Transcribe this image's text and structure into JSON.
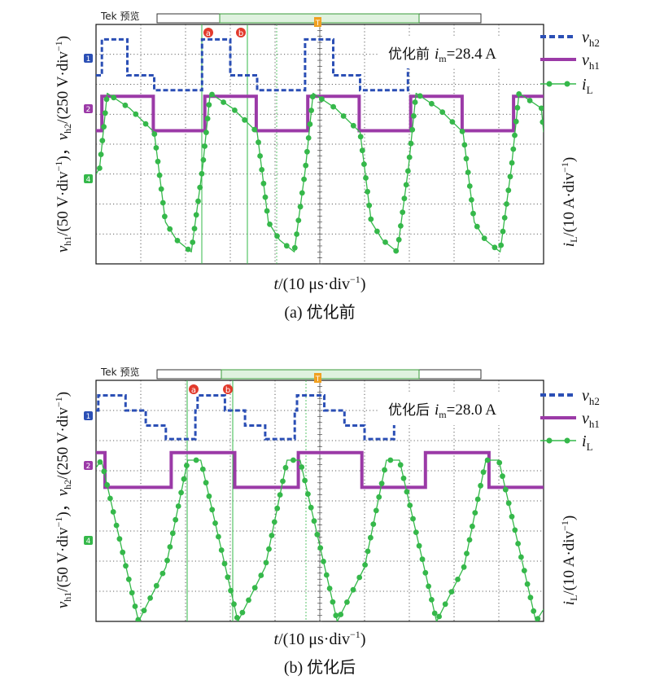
{
  "panels": [
    {
      "id": "a",
      "scope_label": "Tek 预览",
      "annotation_prefix": "优化前",
      "annotation_var": "i",
      "annotation_sub": "m",
      "annotation_value": "=28.4 A",
      "caption": "(a) 优化前",
      "cursor_labels": [
        "a",
        "b"
      ],
      "trigger_label": "T",
      "channel_markers": [
        "1",
        "2",
        "4"
      ]
    },
    {
      "id": "b",
      "scope_label": "Tek 预览",
      "annotation_prefix": "优化后",
      "annotation_var": "i",
      "annotation_sub": "m",
      "annotation_value": "=28.0 A",
      "caption": "(b) 优化后",
      "cursor_labels": [
        "a",
        "b"
      ],
      "trigger_label": "T",
      "channel_markers": [
        "1",
        "2",
        "4"
      ]
    }
  ],
  "axis_labels": {
    "y_left": {
      "p1_var": "v",
      "p1_sub": "h1",
      "p1_unit": "/(50 V·div",
      "sep": "，",
      "p2_var": "v",
      "p2_sub": "h2",
      "p2_unit": "/(250 V·div",
      "exp": "−1",
      "close": ")"
    },
    "y_right": {
      "var": "i",
      "sub": "L",
      "unit": "/(10 A·div",
      "exp": "−1",
      "close": ")"
    },
    "x": {
      "var": "t",
      "unit": "/(10 μs·div",
      "exp": "−1",
      "close": ")"
    }
  },
  "legend": [
    {
      "var": "v",
      "sub": "h2",
      "color": "#2b4fb5",
      "style": "dashed"
    },
    {
      "var": "v",
      "sub": "h1",
      "color": "#9b3aa7",
      "style": "solid"
    },
    {
      "var": "i",
      "sub": "L",
      "color": "#35b84a",
      "style": "solid-dots"
    }
  ],
  "chart_data": [
    {
      "type": "line",
      "title": "",
      "x_divisions": 10,
      "y_divisions": 8,
      "grid": true,
      "legend_position": "right",
      "period_div": 2.3,
      "series": [
        {
          "name": "v_h2",
          "color": "#2b4fb5",
          "x": [
            0.0,
            0.06,
            0.13,
            0.13,
            0.7,
            0.7,
            1.3,
            1.3,
            2.37,
            2.37,
            3.0,
            3.0,
            3.6,
            3.6,
            4.67,
            4.67,
            5.3,
            5.3,
            5.9,
            5.9,
            6.97,
            6.97,
            7.32
          ],
          "y": [
            6.3,
            6.3,
            6.3,
            7.5,
            7.5,
            6.3,
            6.3,
            5.8,
            5.8,
            7.5,
            7.5,
            6.3,
            6.3,
            5.8,
            5.8,
            7.5,
            7.5,
            6.3,
            6.3,
            5.8,
            5.8,
            7.5,
            7.5
          ]
        },
        {
          "name": "v_h1",
          "color": "#9b3aa7",
          "x": [
            0.0,
            0.13,
            0.13,
            1.28,
            1.28,
            2.43,
            2.43,
            3.58,
            3.58,
            4.73,
            4.73,
            5.88,
            5.88,
            7.03,
            7.03,
            8.18,
            8.18,
            9.33,
            9.33,
            10.0
          ],
          "y": [
            4.45,
            4.45,
            5.6,
            5.6,
            4.45,
            4.45,
            5.6,
            5.6,
            4.45,
            4.45,
            5.6,
            5.6,
            4.45,
            4.45,
            5.6,
            5.6,
            4.45,
            4.45,
            5.6,
            5.6
          ]
        },
        {
          "name": "i_L",
          "color": "#35b84a",
          "x": [
            0.0,
            0.08,
            0.25,
            0.75,
            1.3,
            1.55,
            1.8,
            2.13,
            2.38,
            2.55,
            3.05,
            3.6,
            3.85,
            4.1,
            4.43,
            4.68,
            4.85,
            5.35,
            5.9,
            6.15,
            6.4,
            6.73,
            6.98,
            7.15,
            7.65,
            8.2,
            8.45,
            8.7,
            9.03,
            9.28,
            9.45,
            9.95,
            10.0
          ],
          "y": [
            3.0,
            3.2,
            5.7,
            5.2,
            4.4,
            1.4,
            0.8,
            0.4,
            3.2,
            5.7,
            5.2,
            4.4,
            1.4,
            0.8,
            0.4,
            3.2,
            5.7,
            5.2,
            4.4,
            1.4,
            0.8,
            0.4,
            3.2,
            5.7,
            5.2,
            4.4,
            1.4,
            0.8,
            0.4,
            3.2,
            5.7,
            5.2,
            4.4
          ]
        }
      ]
    },
    {
      "type": "line",
      "title": "",
      "x_divisions": 10,
      "y_divisions": 8,
      "grid": true,
      "legend_position": "right",
      "period_div": 2.22,
      "series": [
        {
          "name": "v_h2",
          "color": "#2b4fb5",
          "x": [
            0.0,
            0.05,
            0.05,
            0.66,
            0.66,
            1.11,
            1.11,
            1.56,
            1.56,
            2.22,
            2.22,
            2.27,
            2.27,
            2.88,
            2.88,
            3.33,
            3.33,
            3.78,
            3.78,
            4.44,
            4.44,
            4.49,
            4.49,
            5.1,
            5.1,
            5.55,
            5.55,
            6.0,
            6.0,
            6.66,
            6.66,
            6.98
          ],
          "y": [
            7.0,
            7.0,
            7.5,
            7.5,
            7.0,
            7.0,
            6.5,
            6.5,
            6.05,
            6.05,
            7.0,
            7.0,
            7.5,
            7.5,
            7.0,
            7.0,
            6.5,
            6.5,
            6.05,
            6.05,
            7.0,
            7.0,
            7.5,
            7.5,
            7.0,
            7.0,
            6.5,
            6.5,
            6.05,
            6.05,
            7.0,
            7.0
          ]
        },
        {
          "name": "v_h1",
          "color": "#9b3aa7",
          "x": [
            0.0,
            0.2,
            0.2,
            1.68,
            1.68,
            3.1,
            3.1,
            4.52,
            4.52,
            5.94,
            5.94,
            7.36,
            7.36,
            8.78,
            8.78,
            10.0
          ],
          "y": [
            5.6,
            5.6,
            4.45,
            4.45,
            5.6,
            5.6,
            4.45,
            4.45,
            5.6,
            5.6,
            4.45,
            4.45,
            5.6,
            5.6,
            4.45,
            4.45
          ]
        },
        {
          "name": "i_L",
          "color": "#35b84a",
          "x": [
            0.0,
            0.12,
            0.95,
            1.56,
            2.05,
            2.34,
            3.17,
            3.78,
            4.27,
            4.56,
            5.39,
            6.0,
            6.49,
            6.78,
            7.61,
            8.22,
            8.71,
            9.0,
            9.83,
            10.0
          ],
          "y": [
            5.1,
            5.35,
            0.0,
            1.8,
            5.35,
            5.35,
            0.0,
            1.8,
            5.35,
            5.35,
            0.0,
            1.8,
            5.35,
            5.35,
            0.0,
            1.8,
            5.35,
            5.35,
            0.0,
            0.4
          ]
        }
      ]
    }
  ]
}
